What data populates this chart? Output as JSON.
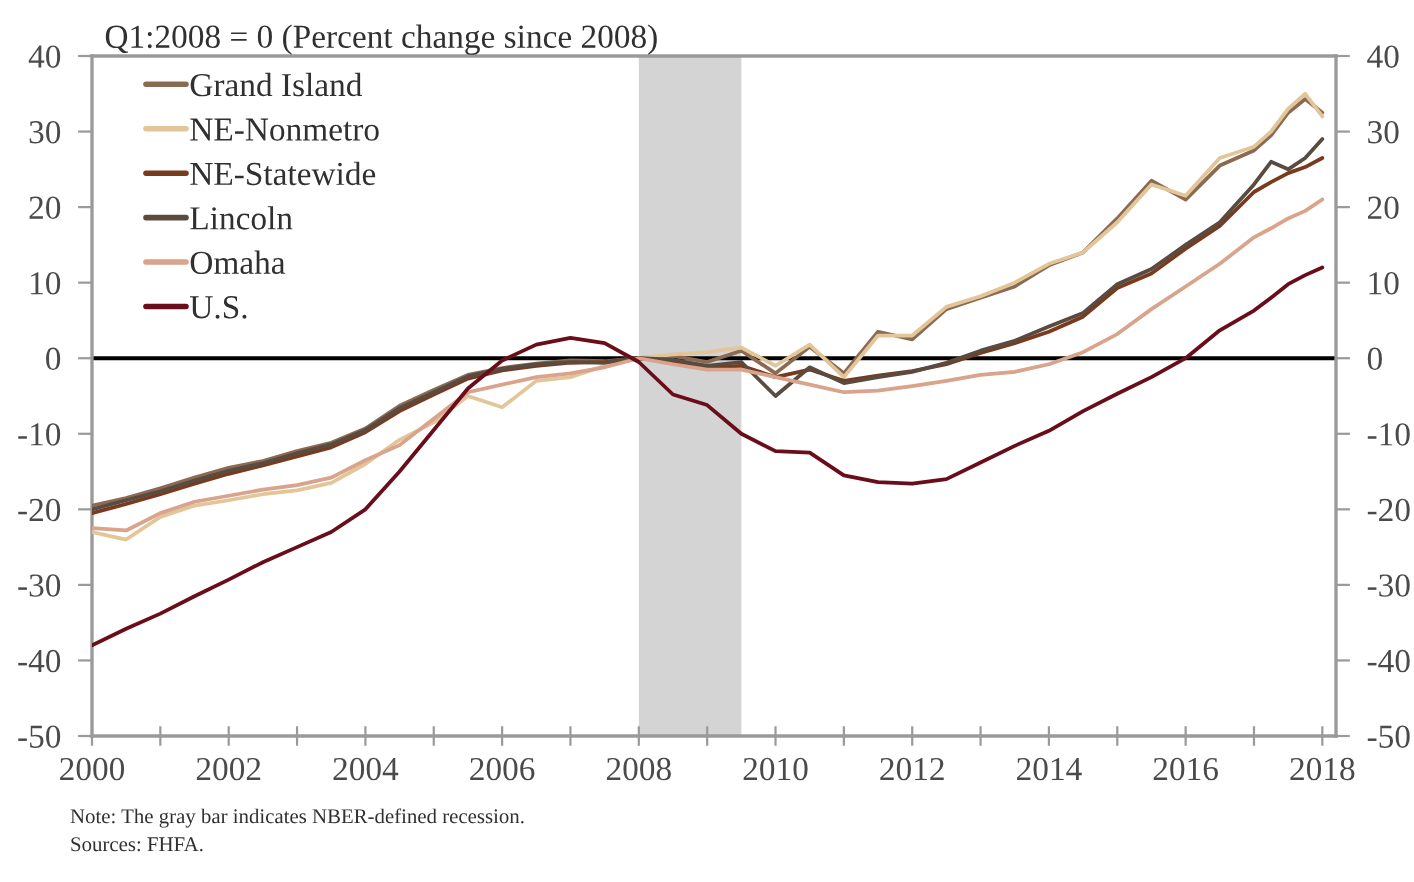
{
  "chart_data": {
    "type": "line",
    "title": "Q1:2008 = 0 (Percent change since 2008)",
    "annotations": [
      "Note: The gray bar indicates NBER-defined recession.",
      "Sources: FHFA."
    ],
    "x": [
      2000,
      2000.5,
      2001,
      2001.5,
      2002,
      2002.5,
      2003,
      2003.5,
      2004,
      2004.5,
      2005,
      2005.5,
      2006,
      2006.5,
      2007,
      2007.5,
      2008,
      2008.5,
      2009,
      2009.5,
      2010,
      2010.5,
      2011,
      2011.5,
      2012,
      2012.5,
      2013,
      2013.5,
      2014,
      2014.5,
      2015,
      2015.5,
      2016,
      2016.5,
      2017,
      2017.25,
      2017.5,
      2017.75,
      2018
    ],
    "series": [
      {
        "name": "Grand Island",
        "color": "#8b6a52",
        "values": [
          -19.5,
          -18.5,
          -17.2,
          -15.8,
          -14.5,
          -13.6,
          -12.3,
          -11.2,
          -9.3,
          -6.3,
          -4.2,
          -2.2,
          -1.3,
          -0.7,
          -0.3,
          -0.4,
          0,
          0.3,
          -0.5,
          1,
          -2,
          1.5,
          -2,
          3.5,
          2.5,
          6.5,
          8,
          9.5,
          12.3,
          14,
          18.5,
          23.5,
          21,
          25.5,
          27.5,
          29.5,
          32.5,
          34.3,
          32.5
        ]
      },
      {
        "name": "NE-Nonmetro",
        "color": "#e3c59a",
        "values": [
          -23,
          -24,
          -21,
          -19.5,
          -18.8,
          -18,
          -17.5,
          -16.5,
          -14,
          -10.8,
          -8.5,
          -5,
          -6.5,
          -3,
          -2.5,
          -1,
          0,
          0.5,
          0.8,
          1.4,
          -1,
          1.8,
          -2.5,
          3,
          3,
          6.8,
          8.2,
          10,
          12.5,
          14,
          18,
          23,
          21.5,
          26.5,
          28,
          30,
          33,
          35,
          32
        ]
      },
      {
        "name": "NE-Statewide",
        "color": "#7a3a1e",
        "values": [
          -20.5,
          -19.3,
          -18,
          -16.6,
          -15.3,
          -14.2,
          -13,
          -11.8,
          -9.8,
          -7,
          -4.8,
          -2.7,
          -1.6,
          -1,
          -0.6,
          -0.5,
          0,
          -0.5,
          -1.2,
          -1,
          -2.5,
          -1.5,
          -3,
          -2.3,
          -1.7,
          -0.8,
          0.7,
          2,
          3.5,
          5.5,
          9.3,
          11.2,
          14.5,
          17.5,
          22,
          23.3,
          24.5,
          25.3,
          26.5
        ]
      },
      {
        "name": "Lincoln",
        "color": "#5a4b40",
        "values": [
          -20,
          -18.8,
          -17.6,
          -16.2,
          -14.9,
          -13.9,
          -12.6,
          -11.4,
          -9.5,
          -6.6,
          -4.5,
          -2.4,
          -1.4,
          -0.8,
          -0.5,
          -0.6,
          0,
          -0.2,
          -1,
          -0.5,
          -5,
          -1.2,
          -3.3,
          -2.5,
          -1.8,
          -0.6,
          1,
          2.3,
          4.2,
          6,
          9.8,
          11.8,
          15,
          18,
          23,
          26,
          25,
          26.5,
          29
        ]
      },
      {
        "name": "Omaha",
        "color": "#d9a38c",
        "values": [
          -22.5,
          -22.8,
          -20.5,
          -19,
          -18.2,
          -17.4,
          -16.8,
          -15.8,
          -13.5,
          -11.5,
          -8,
          -4.5,
          -3.5,
          -2.5,
          -2,
          -1.2,
          0,
          -0.8,
          -1.5,
          -1.5,
          -2.5,
          -3.5,
          -4.5,
          -4.3,
          -3.7,
          -3,
          -2.2,
          -1.8,
          -0.8,
          0.8,
          3.2,
          6.5,
          9.5,
          12.5,
          16,
          17.2,
          18.5,
          19.5,
          21
        ]
      },
      {
        "name": "U.S.",
        "color": "#6a0d1a",
        "values": [
          -38,
          -35.8,
          -33.8,
          -31.5,
          -29.3,
          -27,
          -25,
          -23,
          -20,
          -15,
          -9.5,
          -4,
          -0.3,
          1.8,
          2.7,
          2,
          -0.5,
          -4.8,
          -6.2,
          -10,
          -12.3,
          -12.5,
          -15.5,
          -16.4,
          -16.6,
          -16,
          -13.8,
          -11.6,
          -9.6,
          -7,
          -4.7,
          -2.5,
          0,
          3.7,
          6.3,
          8,
          9.8,
          11,
          12
        ]
      }
    ],
    "xlim": [
      2000,
      2018.2
    ],
    "xticks": [
      2000,
      {
        "value": 2001,
        "label": null
      },
      2002,
      {
        "value": 2003,
        "label": null
      },
      2004,
      {
        "value": 2005,
        "label": null
      },
      2006,
      {
        "value": 2007,
        "label": null
      },
      2008,
      {
        "value": 2009,
        "label": null
      },
      2010,
      {
        "value": 2011,
        "label": null
      },
      2012,
      {
        "value": 2013,
        "label": null
      },
      2014,
      {
        "value": 2015,
        "label": null
      },
      2016,
      {
        "value": 2017,
        "label": null
      },
      2018
    ],
    "ylim": [
      -50,
      40
    ],
    "yticks": [
      -50,
      -40,
      -30,
      -20,
      -10,
      0,
      10,
      20,
      30,
      40
    ],
    "y2lim": [
      -50,
      40
    ],
    "y2ticks": [
      -50,
      -40,
      -30,
      -20,
      -10,
      0,
      10,
      20,
      30,
      40
    ],
    "ref_lines": [
      {
        "axis": "y",
        "value": 0,
        "color": "#000000"
      }
    ],
    "bands": [
      {
        "axis": "x",
        "from": 2008,
        "to": 2009.5,
        "color": "#d4d4d4"
      }
    ],
    "legend": "top left"
  }
}
